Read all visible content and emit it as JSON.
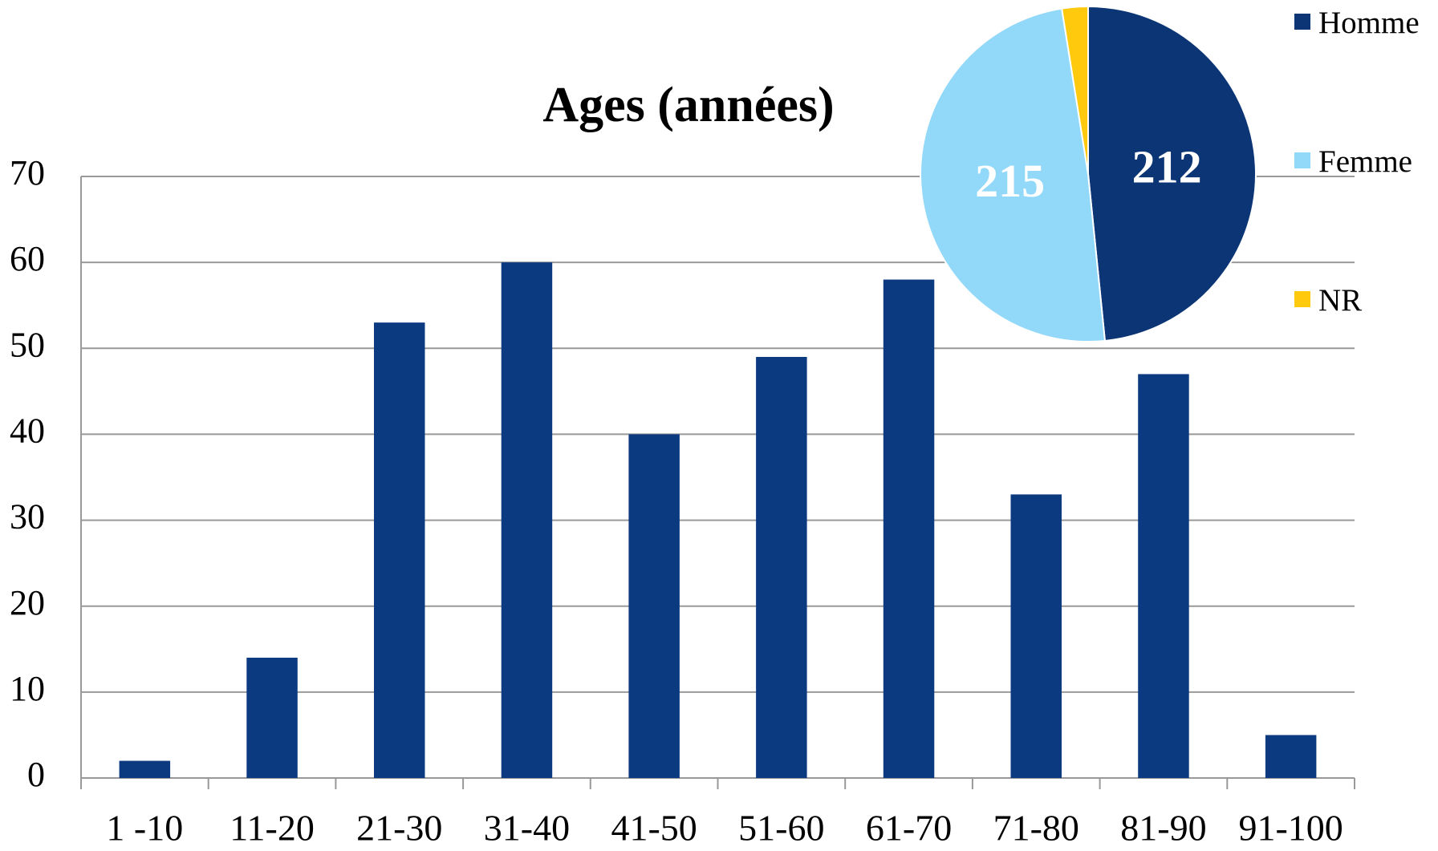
{
  "chart_data": [
    {
      "type": "bar",
      "title": "Ages (années)",
      "categories": [
        "1 -10",
        "11-20",
        "21-30",
        "31-40",
        "41-50",
        "51-60",
        "61-70",
        "71-80",
        "81-90",
        "91-100"
      ],
      "values": [
        2,
        14,
        53,
        60,
        40,
        49,
        58,
        33,
        47,
        5
      ],
      "color": "#0c3a80",
      "ylim": [
        0,
        70
      ],
      "yticks": [
        0,
        10,
        20,
        30,
        40,
        50,
        60,
        70
      ],
      "grid": true
    },
    {
      "type": "pie",
      "labels": [
        "Homme",
        "Femme",
        "NR"
      ],
      "values": [
        212,
        215,
        11
      ],
      "colors": [
        "#0b3574",
        "#92d8f9",
        "#ffc90e"
      ],
      "legend": "right"
    }
  ]
}
